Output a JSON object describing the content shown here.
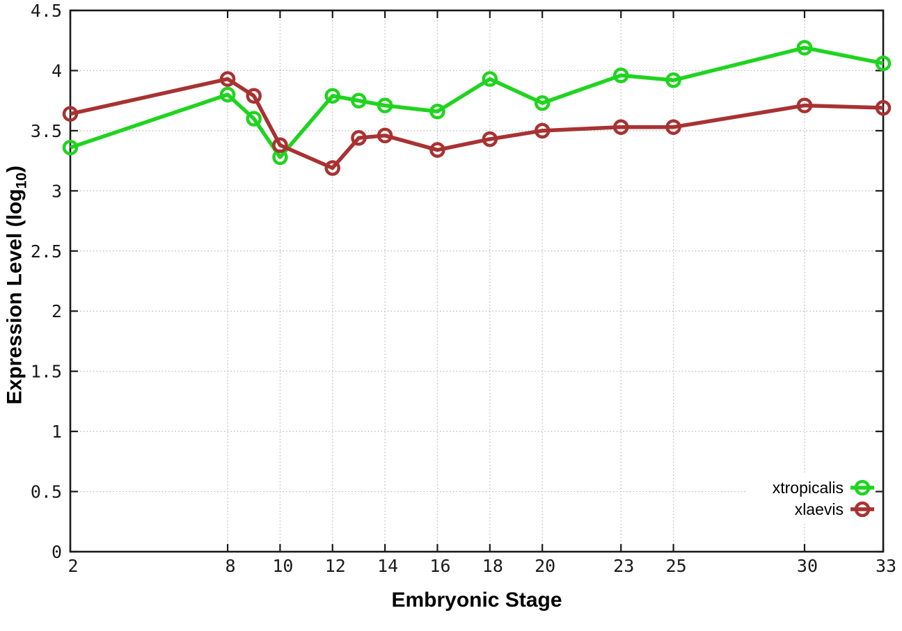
{
  "chart_data": {
    "type": "line",
    "title": "",
    "xlabel": "Embryonic Stage",
    "ylabel": "Expression Level (log10)",
    "ylabel_parts": {
      "text": "Expression Level (log",
      "subscript": "10",
      "suffix": ")"
    },
    "xlim": [
      2,
      33
    ],
    "ylim": [
      0,
      4.5
    ],
    "grid": true,
    "legend_position": "bottom-right",
    "x": [
      2,
      8,
      9,
      10,
      12,
      13,
      14,
      16,
      18,
      20,
      23,
      25,
      30,
      33
    ],
    "x_ticks": [
      2,
      8,
      10,
      12,
      14,
      16,
      18,
      20,
      23,
      25,
      30,
      33
    ],
    "x_tick_labels": [
      "2",
      "8",
      "10",
      "12",
      "14",
      "16",
      "18",
      "20",
      "23",
      "25",
      "30",
      "33"
    ],
    "y_ticks": [
      0,
      0.5,
      1,
      1.5,
      2,
      2.5,
      3,
      3.5,
      4,
      4.5
    ],
    "y_tick_labels": [
      "0",
      "0.5",
      "1",
      "1.5",
      "2",
      "2.5",
      "3",
      "3.5",
      "4",
      "4.5"
    ],
    "series": [
      {
        "name": "xtropicalis",
        "color": "#1fd41f",
        "marker": "open-circle",
        "values": [
          3.36,
          3.8,
          3.6,
          3.28,
          3.79,
          3.75,
          3.71,
          3.66,
          3.93,
          3.73,
          3.96,
          3.92,
          4.19,
          4.06
        ]
      },
      {
        "name": "xlaevis",
        "color": "#a83232",
        "marker": "open-circle",
        "values": [
          3.64,
          3.93,
          3.79,
          3.38,
          3.19,
          3.44,
          3.46,
          3.34,
          3.43,
          3.5,
          3.53,
          3.53,
          3.71,
          3.69
        ]
      }
    ],
    "style": {
      "border_color": "#1a1a1a",
      "grid_color": "#b5b5b5",
      "tick_label_color": "#1a1a1a",
      "background": "#ffffff"
    }
  }
}
